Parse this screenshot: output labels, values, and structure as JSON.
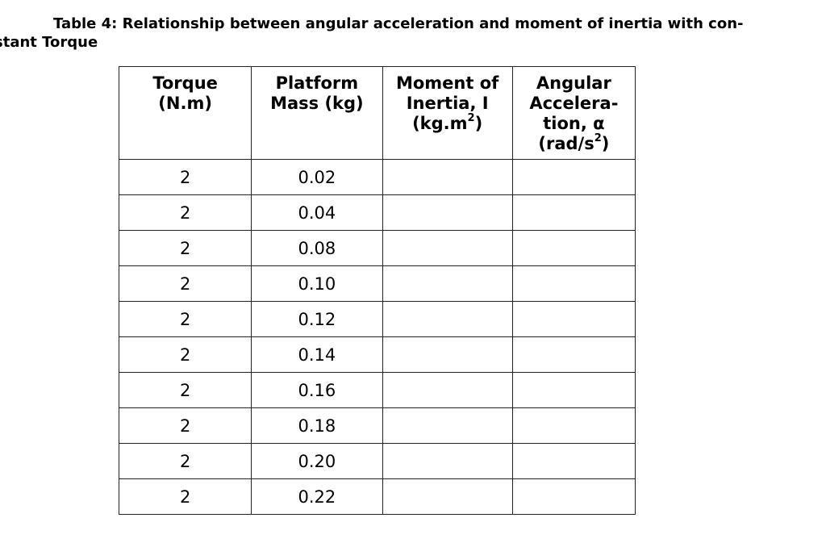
{
  "caption": {
    "line1": "Table 4: Relationship between angular acceleration and moment of inertia with con-",
    "line2": "stant Torque"
  },
  "table": {
    "headers": [
      {
        "lines": [
          "Torque",
          "(N.m)"
        ]
      },
      {
        "lines": [
          "Platform",
          "Mass (kg)"
        ]
      },
      {
        "lines": [
          "Moment of",
          "Inertia, I",
          "(kg.m",
          "2",
          ")"
        ]
      },
      {
        "lines": [
          "Angular",
          "Accelera-",
          "tion, α",
          "(rad/s",
          "2",
          ")"
        ]
      }
    ],
    "rows": [
      {
        "torque": "2",
        "mass": "0.02",
        "inertia": "",
        "acceleration": ""
      },
      {
        "torque": "2",
        "mass": "0.04",
        "inertia": "",
        "acceleration": ""
      },
      {
        "torque": "2",
        "mass": "0.08",
        "inertia": "",
        "acceleration": ""
      },
      {
        "torque": "2",
        "mass": "0.10",
        "inertia": "",
        "acceleration": ""
      },
      {
        "torque": "2",
        "mass": "0.12",
        "inertia": "",
        "acceleration": ""
      },
      {
        "torque": "2",
        "mass": "0.14",
        "inertia": "",
        "acceleration": ""
      },
      {
        "torque": "2",
        "mass": "0.16",
        "inertia": "",
        "acceleration": ""
      },
      {
        "torque": "2",
        "mass": "0.18",
        "inertia": "",
        "acceleration": ""
      },
      {
        "torque": "2",
        "mass": "0.20",
        "inertia": "",
        "acceleration": ""
      },
      {
        "torque": "2",
        "mass": "0.22",
        "inertia": "",
        "acceleration": ""
      }
    ]
  }
}
